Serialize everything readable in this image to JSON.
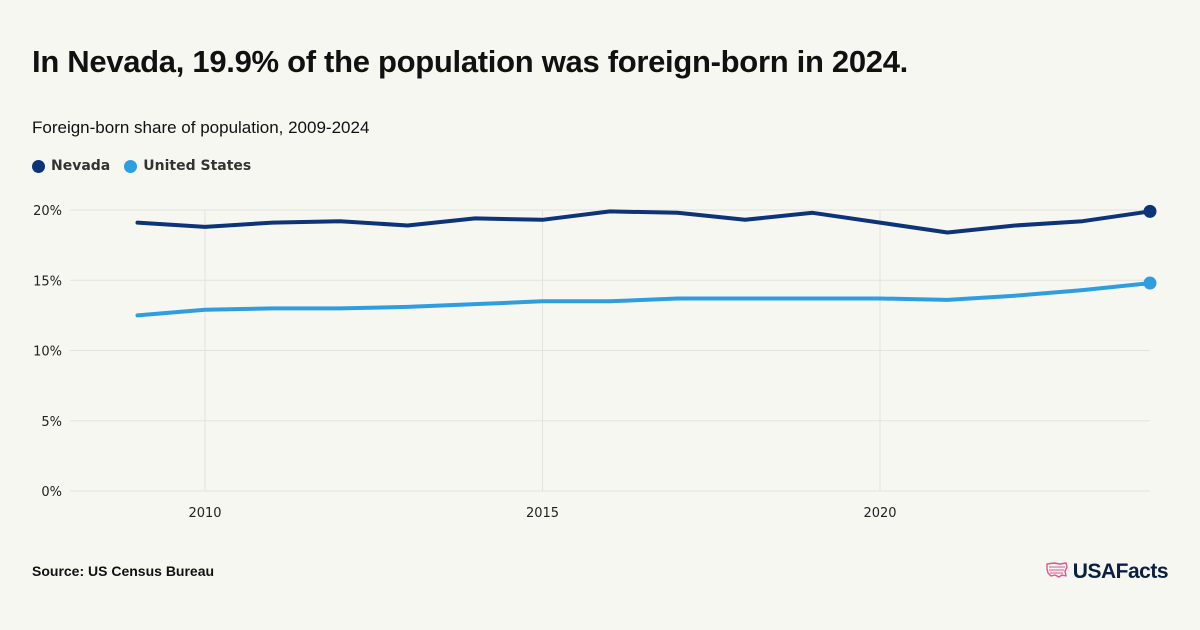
{
  "header": {
    "title": "In Nevada, 19.9% of the population was foreign-born in 2024.",
    "subtitle": "Foreign-born share of population, 2009-2024"
  },
  "footer": {
    "source": "Source: US Census Bureau",
    "brand": "USAFacts"
  },
  "colors": {
    "nevada": "#0d3478",
    "united_states": "#2f9ee0",
    "brand_accent": "#e3518f"
  },
  "icons": {
    "brand_logo": "us-map-flag-icon"
  },
  "chart_data": {
    "type": "line",
    "title": "Foreign-born share of population, 2009-2024",
    "xlabel": "",
    "ylabel": "",
    "x": [
      2009,
      2010,
      2011,
      2012,
      2013,
      2014,
      2015,
      2016,
      2017,
      2018,
      2019,
      2020,
      2021,
      2022,
      2023,
      2024
    ],
    "xlim": [
      2008,
      2024
    ],
    "xticks": [
      2010,
      2015,
      2020
    ],
    "xtick_labels": [
      "2010",
      "2015",
      "2020"
    ],
    "ylim": [
      0,
      20
    ],
    "yticks": [
      0,
      5,
      10,
      15,
      20
    ],
    "ytick_labels": [
      "0%",
      "5%",
      "10%",
      "15%",
      "20%"
    ],
    "grid": true,
    "legend": "top-left",
    "series": [
      {
        "name": "Nevada",
        "color": "#0d3478",
        "values": [
          19.1,
          18.8,
          19.1,
          19.2,
          18.9,
          19.4,
          19.3,
          19.9,
          19.8,
          19.3,
          19.8,
          19.1,
          18.4,
          18.9,
          19.2,
          19.9
        ]
      },
      {
        "name": "United States",
        "color": "#2f9ee0",
        "values": [
          12.5,
          12.9,
          13.0,
          13.0,
          13.1,
          13.3,
          13.5,
          13.5,
          13.7,
          13.7,
          13.7,
          13.7,
          13.6,
          13.9,
          14.3,
          14.8
        ]
      }
    ]
  }
}
